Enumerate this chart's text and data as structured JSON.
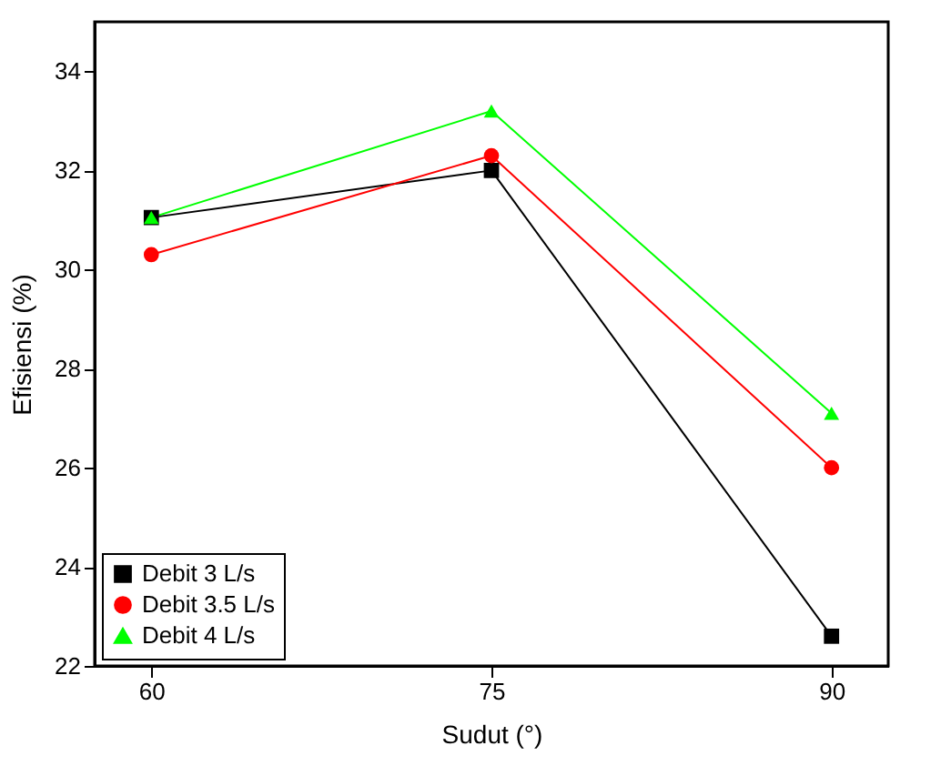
{
  "chart_data": {
    "type": "line",
    "xlabel": "Sudut (°)",
    "ylabel": "Efisiensi (%)",
    "x": [
      60,
      75,
      90
    ],
    "series": [
      {
        "name": "Debit 3 L/s",
        "color": "#000000",
        "marker": "square",
        "values": [
          31.05,
          32.0,
          22.6
        ]
      },
      {
        "name": "Debit 3.5 L/s",
        "color": "#ff0000",
        "marker": "circle",
        "values": [
          30.3,
          32.3,
          26.0
        ]
      },
      {
        "name": "Debit 4 L/s",
        "color": "#00ff00",
        "marker": "triangle",
        "values": [
          31.05,
          33.2,
          27.1
        ]
      }
    ],
    "xlim": [
      57.5,
      92.5
    ],
    "xticks": [
      60,
      75,
      90
    ],
    "ylim": [
      22,
      35
    ],
    "yticks": [
      22,
      24,
      26,
      28,
      30,
      32,
      34
    ],
    "grid": false,
    "legend": "bottom left",
    "line_style": "solid"
  }
}
